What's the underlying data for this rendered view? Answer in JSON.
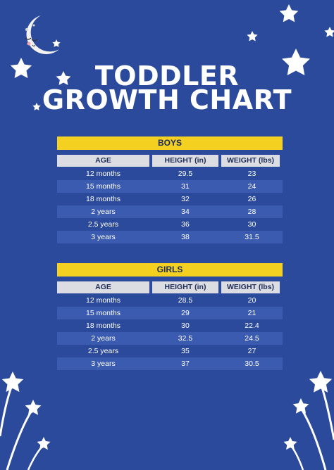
{
  "title": {
    "line1": "TODDLER",
    "line2": "GROWTH CHART"
  },
  "columns": {
    "age": "AGE",
    "height": "HEIGHT (in)",
    "weight": "WEIGHT (lbs)"
  },
  "boys": {
    "label": "BOYS",
    "rows": [
      {
        "age": "12 months",
        "height": "29.5",
        "weight": "23"
      },
      {
        "age": "15 months",
        "height": "31",
        "weight": "24"
      },
      {
        "age": "18 months",
        "height": "32",
        "weight": "26"
      },
      {
        "age": "2 years",
        "height": "34",
        "weight": "28"
      },
      {
        "age": "2.5 years",
        "height": "36",
        "weight": "30"
      },
      {
        "age": "3 years",
        "height": "38",
        "weight": "31.5"
      }
    ]
  },
  "girls": {
    "label": "GIRLS",
    "rows": [
      {
        "age": "12 months",
        "height": "28.5",
        "weight": "20"
      },
      {
        "age": "15 months",
        "height": "29",
        "weight": "21"
      },
      {
        "age": "18 months",
        "height": "30",
        "weight": "22.4"
      },
      {
        "age": "2 years",
        "height": "32.5",
        "weight": "24.5"
      },
      {
        "age": "2.5 years",
        "height": "35",
        "weight": "27"
      },
      {
        "age": "3 years",
        "height": "37",
        "weight": "30.5"
      }
    ]
  },
  "colors": {
    "background": "#2b4a9b",
    "banner": "#f4d020",
    "header": "#dcdde2",
    "stripe": "#3a5bb0"
  },
  "icons": [
    "moon-icon",
    "star-icon",
    "shooting-star-icon"
  ]
}
